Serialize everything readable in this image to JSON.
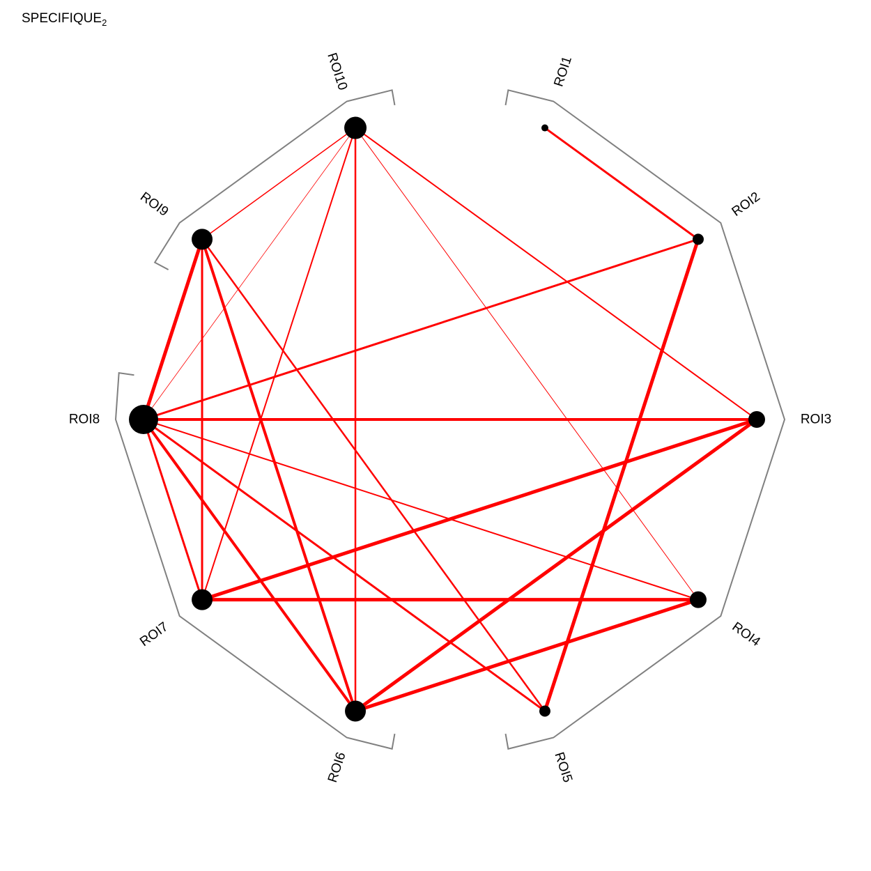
{
  "title": {
    "main": "SPECIFIQUE",
    "subscript": "2"
  },
  "colors": {
    "edge": "#ff0000",
    "node": "#000000",
    "bracket": "#808080"
  },
  "nodes": [
    {
      "id": "ROI1",
      "label": "ROI1",
      "size": 1
    },
    {
      "id": "ROI2",
      "label": "ROI2",
      "size": 2
    },
    {
      "id": "ROI3",
      "label": "ROI3",
      "size": 3
    },
    {
      "id": "ROI4",
      "label": "ROI4",
      "size": 3
    },
    {
      "id": "ROI5",
      "label": "ROI5",
      "size": 2
    },
    {
      "id": "ROI6",
      "label": "ROI6",
      "size": 4
    },
    {
      "id": "ROI7",
      "label": "ROI7",
      "size": 4
    },
    {
      "id": "ROI8",
      "label": "ROI8",
      "size": 7
    },
    {
      "id": "ROI9",
      "label": "ROI9",
      "size": 4
    },
    {
      "id": "ROI10",
      "label": "ROI10",
      "size": 5
    }
  ],
  "edges": [
    {
      "from": "ROI1",
      "to": "ROI2",
      "weight": 3
    },
    {
      "from": "ROI2",
      "to": "ROI8",
      "weight": 3
    },
    {
      "from": "ROI2",
      "to": "ROI5",
      "weight": 5
    },
    {
      "from": "ROI10",
      "to": "ROI9",
      "weight": 1.5
    },
    {
      "from": "ROI10",
      "to": "ROI8",
      "weight": 0.8
    },
    {
      "from": "ROI10",
      "to": "ROI7",
      "weight": 2
    },
    {
      "from": "ROI10",
      "to": "ROI6",
      "weight": 2.5
    },
    {
      "from": "ROI10",
      "to": "ROI4",
      "weight": 1
    },
    {
      "from": "ROI10",
      "to": "ROI3",
      "weight": 2
    },
    {
      "from": "ROI9",
      "to": "ROI8",
      "weight": 5
    },
    {
      "from": "ROI9",
      "to": "ROI7",
      "weight": 3
    },
    {
      "from": "ROI9",
      "to": "ROI6",
      "weight": 4
    },
    {
      "from": "ROI9",
      "to": "ROI5",
      "weight": 2.5
    },
    {
      "from": "ROI8",
      "to": "ROI3",
      "weight": 4
    },
    {
      "from": "ROI8",
      "to": "ROI7",
      "weight": 3
    },
    {
      "from": "ROI8",
      "to": "ROI6",
      "weight": 4
    },
    {
      "from": "ROI8",
      "to": "ROI5",
      "weight": 3
    },
    {
      "from": "ROI8",
      "to": "ROI4",
      "weight": 2
    },
    {
      "from": "ROI7",
      "to": "ROI3",
      "weight": 5
    },
    {
      "from": "ROI7",
      "to": "ROI4",
      "weight": 5
    },
    {
      "from": "ROI6",
      "to": "ROI3",
      "weight": 5
    },
    {
      "from": "ROI6",
      "to": "ROI4",
      "weight": 5
    }
  ],
  "groups": [
    {
      "members": [
        "ROI1",
        "ROI2",
        "ROI3",
        "ROI4",
        "ROI5"
      ]
    },
    {
      "members": [
        "ROI6",
        "ROI7",
        "ROI8"
      ]
    },
    {
      "members": [
        "ROI9",
        "ROI10"
      ]
    }
  ]
}
